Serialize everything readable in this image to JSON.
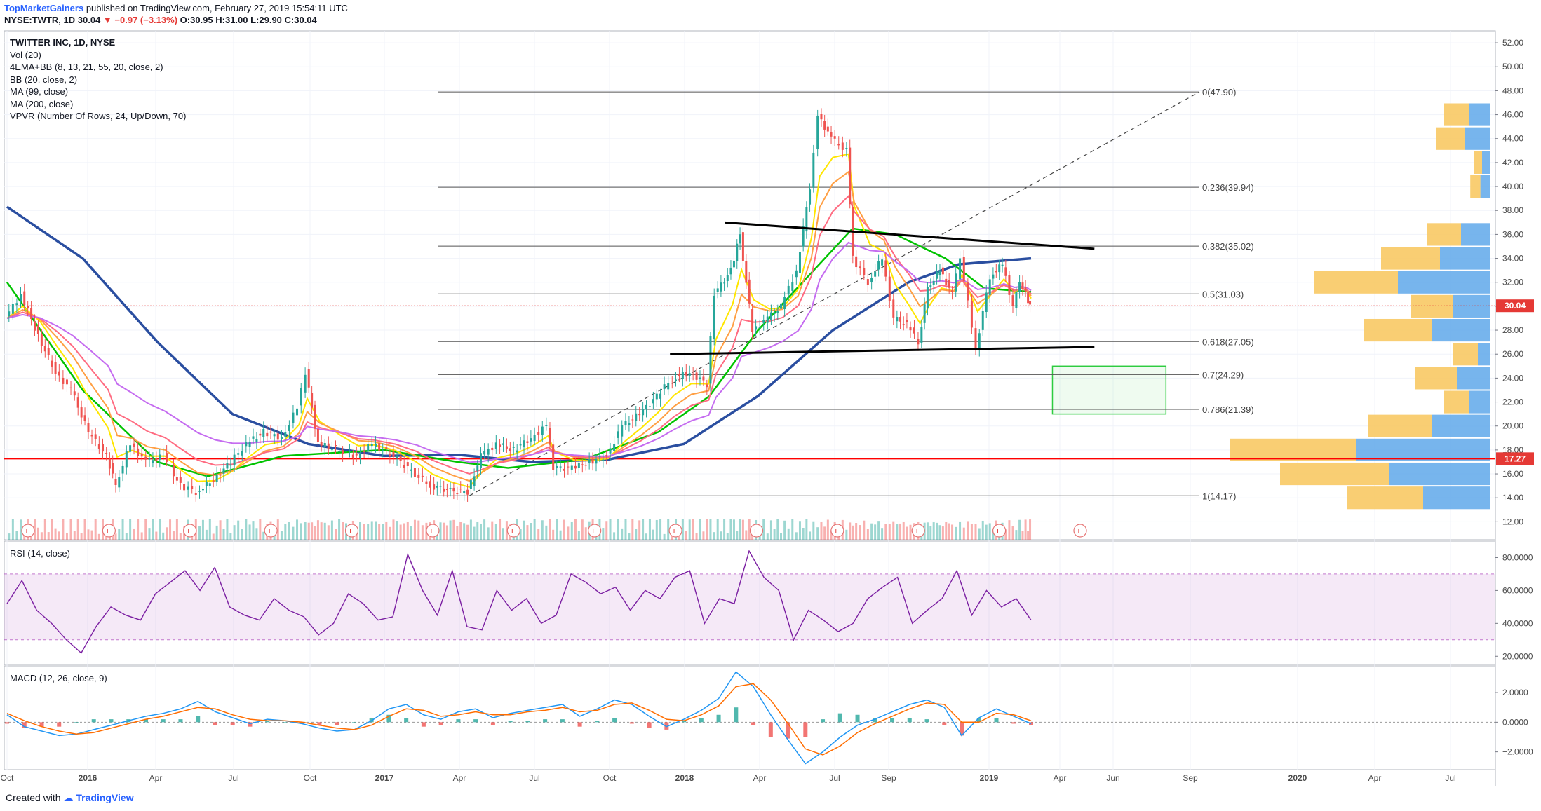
{
  "header": {
    "publisher": "TopMarketGainers",
    "published_text": "published on TradingView.com, February 27, 2019 15:54:11 UTC",
    "symbol": "NYSE:TWTR, 1D",
    "last": "30.04",
    "change": "▼ −0.97 (−3.13%)",
    "ohlc": "O:30.95 H:31.00 L:29.90 C:30.04"
  },
  "legend": {
    "title": "TWITTER INC, 1D, NYSE",
    "items": [
      "Vol (20)",
      "4EMA+BB (8, 13, 21, 55, 20, close, 2)",
      "BB (20, close, 2)",
      "MA (99, close)",
      "MA (200, close)",
      "VPVR (Number Of Rows, 24, Up/Down, 70)"
    ]
  },
  "panes": {
    "rsi_label": "RSI (14, close)",
    "macd_label": "MACD (12, 26, close, 9)"
  },
  "footer": {
    "created_with": "Created with",
    "brand": "TradingView"
  },
  "colors": {
    "up": "#26a69a",
    "down": "#ef5350",
    "ma99": "#00c300",
    "ma200": "#2a4ea0",
    "rsi": "#7b1fa2",
    "fib_zone": "#2ecc40",
    "support_line": "#ff0000"
  },
  "chart_data": [
    {
      "type": "candlestick",
      "title": "TWITTER INC, 1D, NYSE",
      "x_ticks": [
        "Oct",
        "2016",
        "Apr",
        "Jul",
        "Oct",
        "2017",
        "Apr",
        "Jul",
        "Oct",
        "2018",
        "Apr",
        "Jul",
        "Sep",
        "2019",
        "Apr",
        "Jun",
        "Sep",
        "2020",
        "Apr",
        "Jul"
      ],
      "y_ticks": [
        "52.00",
        "50.00",
        "48.00",
        "46.00",
        "44.00",
        "42.00",
        "40.00",
        "38.00",
        "36.00",
        "34.00",
        "32.00",
        "30.00",
        "28.00",
        "26.00",
        "24.00",
        "22.00",
        "20.00",
        "18.00",
        "16.00",
        "14.00",
        "12.00"
      ],
      "ylim": [
        10.5,
        53
      ],
      "price_series": [
        {
          "x": "2015-10-01",
          "close": 29.0
        },
        {
          "x": "2015-10-20",
          "close": 31.0
        },
        {
          "x": "2015-11-10",
          "close": 27.5
        },
        {
          "x": "2015-12-01",
          "close": 24.5
        },
        {
          "x": "2015-12-20",
          "close": 23.0
        },
        {
          "x": "2016-01-10",
          "close": 19.5
        },
        {
          "x": "2016-02-01",
          "close": 17.5
        },
        {
          "x": "2016-02-12",
          "close": 15.0
        },
        {
          "x": "2016-03-01",
          "close": 18.5
        },
        {
          "x": "2016-03-20",
          "close": 17.0
        },
        {
          "x": "2016-04-10",
          "close": 17.5
        },
        {
          "x": "2016-05-01",
          "close": 15.0
        },
        {
          "x": "2016-05-20",
          "close": 14.5
        },
        {
          "x": "2016-06-10",
          "close": 15.5
        },
        {
          "x": "2016-07-01",
          "close": 17.0
        },
        {
          "x": "2016-07-20",
          "close": 18.5
        },
        {
          "x": "2016-08-10",
          "close": 19.5
        },
        {
          "x": "2016-09-01",
          "close": 19.0
        },
        {
          "x": "2016-09-20",
          "close": 21.5
        },
        {
          "x": "2016-09-30",
          "close": 24.5
        },
        {
          "x": "2016-10-15",
          "close": 18.5
        },
        {
          "x": "2016-11-10",
          "close": 18.0
        },
        {
          "x": "2016-12-01",
          "close": 17.5
        },
        {
          "x": "2016-12-20",
          "close": 18.5
        },
        {
          "x": "2017-01-15",
          "close": 17.5
        },
        {
          "x": "2017-02-10",
          "close": 16.0
        },
        {
          "x": "2017-03-01",
          "close": 15.0
        },
        {
          "x": "2017-03-25",
          "close": 14.6
        },
        {
          "x": "2017-04-15",
          "close": 14.5
        },
        {
          "x": "2017-05-01",
          "close": 17.5
        },
        {
          "x": "2017-05-20",
          "close": 18.5
        },
        {
          "x": "2017-06-10",
          "close": 18.0
        },
        {
          "x": "2017-07-01",
          "close": 19.0
        },
        {
          "x": "2017-07-20",
          "close": 20.0
        },
        {
          "x": "2017-07-28",
          "close": 16.5
        },
        {
          "x": "2017-08-20",
          "close": 16.5
        },
        {
          "x": "2017-09-10",
          "close": 17.0
        },
        {
          "x": "2017-10-01",
          "close": 17.5
        },
        {
          "x": "2017-10-20",
          "close": 20.0
        },
        {
          "x": "2017-11-10",
          "close": 21.0
        },
        {
          "x": "2017-12-01",
          "close": 22.5
        },
        {
          "x": "2017-12-20",
          "close": 24.0
        },
        {
          "x": "2018-01-10",
          "close": 24.5
        },
        {
          "x": "2018-01-31",
          "close": 23.5
        },
        {
          "x": "2018-02-09",
          "close": 31.0
        },
        {
          "x": "2018-03-01",
          "close": 33.0
        },
        {
          "x": "2018-03-12",
          "close": 36.0
        },
        {
          "x": "2018-03-27",
          "close": 28.0
        },
        {
          "x": "2018-04-15",
          "close": 29.0
        },
        {
          "x": "2018-05-01",
          "close": 30.0
        },
        {
          "x": "2018-05-20",
          "close": 33.0
        },
        {
          "x": "2018-06-05",
          "close": 40.0
        },
        {
          "x": "2018-06-15",
          "close": 46.0
        },
        {
          "x": "2018-07-01",
          "close": 44.0
        },
        {
          "x": "2018-07-20",
          "close": 43.0
        },
        {
          "x": "2018-07-27",
          "close": 34.0
        },
        {
          "x": "2018-08-15",
          "close": 32.0
        },
        {
          "x": "2018-09-01",
          "close": 34.0
        },
        {
          "x": "2018-09-15",
          "close": 29.0
        },
        {
          "x": "2018-10-01",
          "close": 28.5
        },
        {
          "x": "2018-10-15",
          "close": 27.0
        },
        {
          "x": "2018-10-26",
          "close": 31.5
        },
        {
          "x": "2018-11-10",
          "close": 33.0
        },
        {
          "x": "2018-11-25",
          "close": 31.0
        },
        {
          "x": "2018-12-05",
          "close": 34.0
        },
        {
          "x": "2018-12-24",
          "close": 26.5
        },
        {
          "x": "2019-01-10",
          "close": 32.5
        },
        {
          "x": "2019-01-25",
          "close": 33.5
        },
        {
          "x": "2019-02-07",
          "close": 30.0
        },
        {
          "x": "2019-02-15",
          "close": 32.0
        },
        {
          "x": "2019-02-22",
          "close": 31.0
        },
        {
          "x": "2019-02-27",
          "close": 30.04
        }
      ],
      "ma99_series": [
        {
          "x": "2015-10-01",
          "y": 32.0
        },
        {
          "x": "2016-01-01",
          "y": 23.0
        },
        {
          "x": "2016-04-01",
          "y": 17.0
        },
        {
          "x": "2016-06-01",
          "y": 15.8
        },
        {
          "x": "2016-09-01",
          "y": 17.5
        },
        {
          "x": "2017-01-01",
          "y": 18.0
        },
        {
          "x": "2017-04-01",
          "y": 17.0
        },
        {
          "x": "2017-06-01",
          "y": 16.5
        },
        {
          "x": "2017-09-01",
          "y": 17.2
        },
        {
          "x": "2017-12-01",
          "y": 19.5
        },
        {
          "x": "2018-02-01",
          "y": 22.5
        },
        {
          "x": "2018-04-01",
          "y": 28.0
        },
        {
          "x": "2018-06-01",
          "y": 32.5
        },
        {
          "x": "2018-07-25",
          "y": 36.5
        },
        {
          "x": "2018-09-15",
          "y": 36.0
        },
        {
          "x": "2018-11-15",
          "y": 34.0
        },
        {
          "x": "2019-01-01",
          "y": 31.5
        },
        {
          "x": "2019-02-27",
          "y": 31.2
        }
      ],
      "ma200_series": [
        {
          "x": "2015-10-01",
          "y": 38.3
        },
        {
          "x": "2016-01-01",
          "y": 34.0
        },
        {
          "x": "2016-04-01",
          "y": 27.0
        },
        {
          "x": "2016-07-01",
          "y": 21.0
        },
        {
          "x": "2016-10-01",
          "y": 18.5
        },
        {
          "x": "2017-01-01",
          "y": 17.5
        },
        {
          "x": "2017-04-01",
          "y": 17.6
        },
        {
          "x": "2017-07-01",
          "y": 17.0
        },
        {
          "x": "2017-10-01",
          "y": 17.2
        },
        {
          "x": "2018-01-01",
          "y": 18.5
        },
        {
          "x": "2018-04-01",
          "y": 22.5
        },
        {
          "x": "2018-07-01",
          "y": 28.0
        },
        {
          "x": "2018-10-01",
          "y": 32.0
        },
        {
          "x": "2018-12-01",
          "y": 33.5
        },
        {
          "x": "2019-02-27",
          "y": 34.0
        }
      ],
      "fibonacci": [
        {
          "label": "0(47.90)",
          "level": 47.9
        },
        {
          "label": "0.236(39.94)",
          "level": 39.94
        },
        {
          "label": "0.382(35.02)",
          "level": 35.02
        },
        {
          "label": "0.5(31.03)",
          "level": 31.03
        },
        {
          "label": "0.618(27.05)",
          "level": 27.05
        },
        {
          "label": "0.7(24.29)",
          "level": 24.29
        },
        {
          "label": "0.786(21.39)",
          "level": 21.39
        },
        {
          "label": "1(14.17)",
          "level": 14.17
        }
      ],
      "fib_start": "2017-04-15",
      "trendlines": [
        {
          "name": "resistance",
          "from": {
            "x": "2018-02-20",
            "y": 37.0
          },
          "to": {
            "x": "2019-05-15",
            "y": 34.8
          }
        },
        {
          "name": "support",
          "from": {
            "x": "2017-12-15",
            "y": 26.0
          },
          "to": {
            "x": "2019-05-15",
            "y": 26.6
          }
        }
      ],
      "target_zone": {
        "from": "2019-03-25",
        "to": "2019-08-10",
        "top": 25.0,
        "bottom": 21.0
      },
      "horizontal_support": 17.27,
      "price_badges": [
        "30.04",
        "17.27"
      ],
      "earnings_markers": [
        "E",
        "E",
        "E",
        "E",
        "E",
        "E",
        "E",
        "E",
        "E",
        "E",
        "E",
        "E",
        "E",
        "E"
      ],
      "volume_profile": [
        {
          "price": 46.0,
          "up": 0.3,
          "down": 0.25
        },
        {
          "price": 44.0,
          "up": 0.35,
          "down": 0.3
        },
        {
          "price": 42.0,
          "up": 0.1,
          "down": 0.1
        },
        {
          "price": 40.0,
          "up": 0.12,
          "down": 0.12
        },
        {
          "price": 36.0,
          "up": 0.4,
          "down": 0.35
        },
        {
          "price": 34.0,
          "up": 0.7,
          "down": 0.6
        },
        {
          "price": 32.0,
          "up": 1.0,
          "down": 1.1
        },
        {
          "price": 30.0,
          "up": 0.5,
          "down": 0.45
        },
        {
          "price": 28.0,
          "up": 0.8,
          "down": 0.7
        },
        {
          "price": 26.0,
          "up": 0.3,
          "down": 0.15
        },
        {
          "price": 24.0,
          "up": 0.5,
          "down": 0.4
        },
        {
          "price": 22.0,
          "up": 0.3,
          "down": 0.25
        },
        {
          "price": 20.0,
          "up": 0.75,
          "down": 0.7
        },
        {
          "price": 18.0,
          "up": 1.5,
          "down": 1.6
        },
        {
          "price": 16.0,
          "up": 1.3,
          "down": 1.2
        },
        {
          "price": 14.0,
          "up": 0.9,
          "down": 0.8
        }
      ]
    },
    {
      "type": "line",
      "title": "RSI (14, close)",
      "y_ticks": [
        "80.0000",
        "60.0000",
        "40.0000",
        "20.0000"
      ],
      "ylim": [
        15,
        90
      ],
      "band": [
        30,
        70
      ],
      "series": [
        {
          "values": [
            52,
            66,
            48,
            40,
            30,
            22,
            38,
            50,
            45,
            42,
            58,
            65,
            72,
            60,
            74,
            50,
            45,
            42,
            55,
            48,
            44,
            33,
            40,
            58,
            52,
            42,
            44,
            82,
            60,
            45,
            72,
            38,
            36,
            60,
            48,
            55,
            40,
            45,
            70,
            65,
            58,
            62,
            48,
            60,
            55,
            68,
            72,
            40,
            55,
            52,
            84,
            68,
            60,
            30,
            48,
            42,
            35,
            40,
            55,
            62,
            68,
            40,
            48,
            55,
            72,
            45,
            60,
            50,
            55,
            42
          ]
        }
      ]
    },
    {
      "type": "line",
      "title": "MACD (12, 26, close, 9)",
      "y_ticks": [
        "2.0000",
        "0.0000",
        "−2.0000"
      ],
      "ylim": [
        -3.2,
        3.8
      ],
      "series": [
        {
          "name": "MACD",
          "values": [
            0.5,
            -0.3,
            -0.6,
            -0.9,
            -0.8,
            -0.5,
            -0.2,
            0.1,
            0.4,
            0.6,
            0.9,
            1.4,
            0.7,
            0.3,
            -0.1,
            0.2,
            0.1,
            -0.1,
            -0.4,
            -0.6,
            -0.5,
            0.1,
            0.9,
            1.2,
            0.5,
            0.2,
            0.7,
            0.9,
            0.3,
            0.6,
            0.8,
            1.0,
            1.2,
            0.4,
            0.9,
            1.5,
            1.2,
            0.4,
            -0.3,
            0.2,
            0.8,
            1.6,
            3.4,
            2.4,
            0.5,
            -1.2,
            -2.8,
            -2.0,
            -1.0,
            -0.2,
            0.2,
            0.7,
            1.2,
            1.5,
            1.0,
            -0.9,
            0.3,
            0.9,
            0.4,
            -0.1
          ]
        },
        {
          "name": "Signal",
          "values": [
            0.6,
            0.1,
            -0.3,
            -0.6,
            -0.8,
            -0.7,
            -0.4,
            -0.1,
            0.2,
            0.4,
            0.7,
            1.0,
            0.9,
            0.5,
            0.2,
            0.1,
            0.1,
            0.0,
            -0.2,
            -0.4,
            -0.5,
            -0.2,
            0.4,
            0.9,
            0.8,
            0.4,
            0.5,
            0.7,
            0.5,
            0.5,
            0.7,
            0.8,
            1.0,
            0.7,
            0.8,
            1.2,
            1.3,
            0.8,
            0.2,
            0.1,
            0.5,
            1.1,
            2.4,
            2.6,
            1.5,
            -0.1,
            -1.8,
            -2.2,
            -1.6,
            -0.7,
            -0.1,
            0.4,
            0.9,
            1.3,
            1.2,
            0.0,
            0.0,
            0.6,
            0.5,
            0.1
          ]
        }
      ]
    }
  ]
}
